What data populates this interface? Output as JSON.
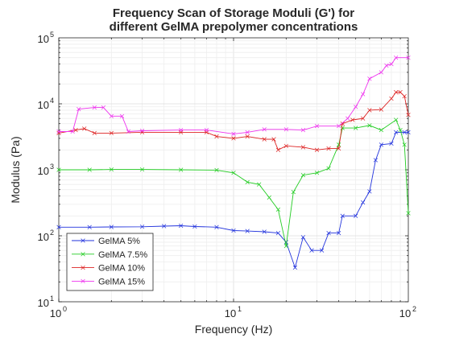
{
  "chart_data": {
    "type": "line",
    "title": [
      "Frequency Scan of Storage Moduli (G') for",
      "different GelMA prepolymer concentrations"
    ],
    "xlabel": "Frequency (Hz)",
    "ylabel": "Modulus (Pa)",
    "xscale": "log",
    "yscale": "log",
    "xlim": [
      1,
      100
    ],
    "ylim": [
      10,
      100000
    ],
    "x_ticks": [
      {
        "base": "10",
        "exp": "0"
      },
      {
        "base": "10",
        "exp": "1"
      },
      {
        "base": "10",
        "exp": "2"
      }
    ],
    "y_ticks": [
      {
        "base": "10",
        "exp": "1"
      },
      {
        "base": "10",
        "exp": "2"
      },
      {
        "base": "10",
        "exp": "3"
      },
      {
        "base": "10",
        "exp": "4"
      },
      {
        "base": "10",
        "exp": "5"
      }
    ],
    "grid": true,
    "legend_position": "bottom-left",
    "marker": "x",
    "series": [
      {
        "name": "GelMA 5%",
        "color": "#2233dd",
        "points": [
          [
            1,
            135
          ],
          [
            1.5,
            135
          ],
          [
            2,
            136
          ],
          [
            3,
            137
          ],
          [
            4,
            140
          ],
          [
            5,
            142
          ],
          [
            6,
            138
          ],
          [
            8,
            135
          ],
          [
            10,
            120
          ],
          [
            12,
            118
          ],
          [
            15,
            115
          ],
          [
            18,
            110
          ],
          [
            20,
            80
          ],
          [
            22.5,
            33
          ],
          [
            25,
            95
          ],
          [
            28,
            60
          ],
          [
            32,
            60
          ],
          [
            35,
            110
          ],
          [
            40,
            110
          ],
          [
            42,
            200
          ],
          [
            50,
            200
          ],
          [
            55,
            320
          ],
          [
            60,
            470
          ],
          [
            65,
            1400
          ],
          [
            70,
            2400
          ],
          [
            80,
            2500
          ],
          [
            85,
            3700
          ],
          [
            95,
            3700
          ],
          [
            100,
            3700
          ]
        ]
      },
      {
        "name": "GelMA 7.5%",
        "color": "#22cc22",
        "points": [
          [
            1,
            1000
          ],
          [
            1.5,
            1000
          ],
          [
            2,
            1010
          ],
          [
            3,
            1010
          ],
          [
            5,
            1000
          ],
          [
            8,
            990
          ],
          [
            10,
            900
          ],
          [
            12,
            650
          ],
          [
            14,
            600
          ],
          [
            16,
            380
          ],
          [
            18,
            250
          ],
          [
            20,
            70
          ],
          [
            22,
            460
          ],
          [
            25,
            830
          ],
          [
            30,
            900
          ],
          [
            35,
            1050
          ],
          [
            40,
            2400
          ],
          [
            42,
            4300
          ],
          [
            50,
            4300
          ],
          [
            60,
            4700
          ],
          [
            70,
            4000
          ],
          [
            85,
            5700
          ],
          [
            90,
            4000
          ],
          [
            95,
            2400
          ],
          [
            100,
            220
          ]
        ]
      },
      {
        "name": "GelMA 10%",
        "color": "#dd2222",
        "points": [
          [
            1,
            3600
          ],
          [
            1.25,
            4000
          ],
          [
            1.4,
            4200
          ],
          [
            1.6,
            3600
          ],
          [
            2,
            3600
          ],
          [
            3,
            3700
          ],
          [
            5,
            3700
          ],
          [
            7,
            3700
          ],
          [
            8,
            3200
          ],
          [
            10,
            3000
          ],
          [
            12,
            3200
          ],
          [
            15,
            2900
          ],
          [
            17,
            2900
          ],
          [
            18,
            2000
          ],
          [
            20,
            2300
          ],
          [
            25,
            2200
          ],
          [
            30,
            2000
          ],
          [
            35,
            2100
          ],
          [
            40,
            2100
          ],
          [
            42,
            5000
          ],
          [
            48,
            5700
          ],
          [
            55,
            6000
          ],
          [
            60,
            8000
          ],
          [
            70,
            8200
          ],
          [
            80,
            12000
          ],
          [
            85,
            15000
          ],
          [
            90,
            15000
          ],
          [
            95,
            13000
          ],
          [
            100,
            6800
          ]
        ]
      },
      {
        "name": "GelMA 15%",
        "color": "#ee33ee",
        "points": [
          [
            1,
            3800
          ],
          [
            1.2,
            3800
          ],
          [
            1.3,
            8300
          ],
          [
            1.6,
            8800
          ],
          [
            1.8,
            8800
          ],
          [
            2,
            6500
          ],
          [
            2.3,
            6500
          ],
          [
            2.5,
            3800
          ],
          [
            3,
            3900
          ],
          [
            5,
            4000
          ],
          [
            7,
            4000
          ],
          [
            10,
            3500
          ],
          [
            12,
            3700
          ],
          [
            15,
            4100
          ],
          [
            20,
            4100
          ],
          [
            25,
            4000
          ],
          [
            30,
            4600
          ],
          [
            40,
            4600
          ],
          [
            45,
            6000
          ],
          [
            50,
            9000
          ],
          [
            55,
            14000
          ],
          [
            60,
            24000
          ],
          [
            70,
            30000
          ],
          [
            75,
            38000
          ],
          [
            80,
            40000
          ],
          [
            85,
            50000
          ],
          [
            100,
            50000
          ]
        ]
      }
    ]
  }
}
